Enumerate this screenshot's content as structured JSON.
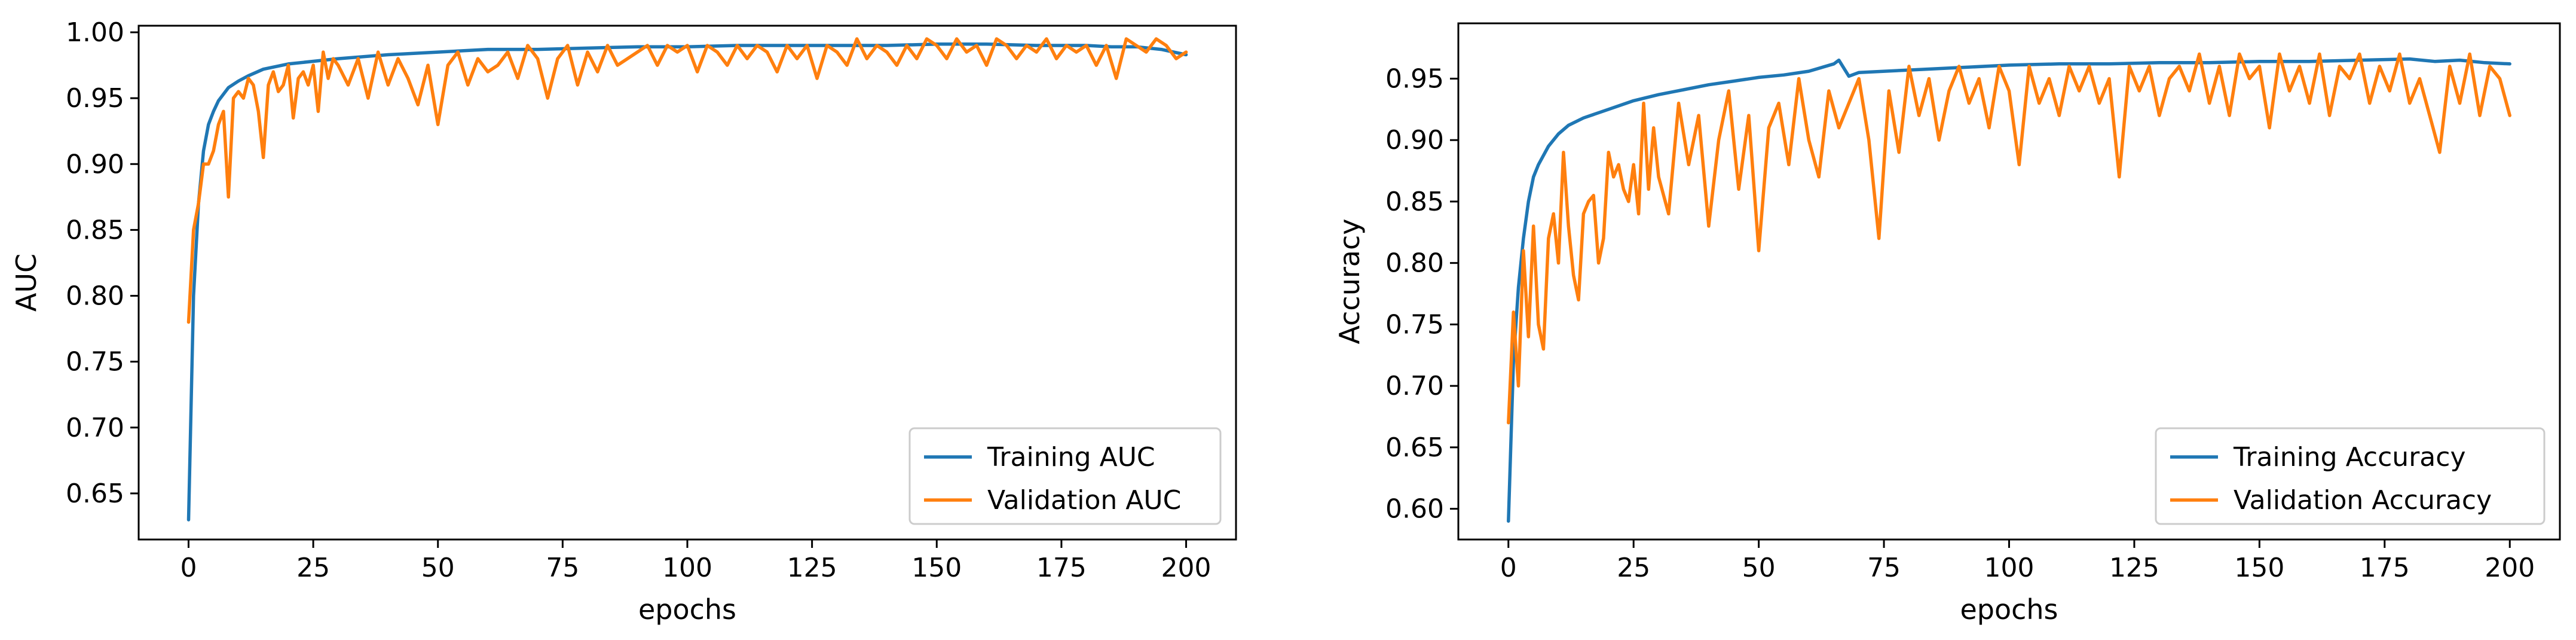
{
  "chart_data": [
    {
      "type": "line",
      "title": "",
      "xlabel": "epochs",
      "ylabel": "AUC",
      "xlim": [
        -10,
        210
      ],
      "ylim": [
        0.615,
        1.005
      ],
      "xticks": [
        0,
        25,
        50,
        75,
        100,
        125,
        150,
        175,
        200
      ],
      "xtick_labels": [
        "0",
        "25",
        "50",
        "75",
        "100",
        "125",
        "150",
        "175",
        "200"
      ],
      "yticks": [
        0.65,
        0.7,
        0.75,
        0.8,
        0.85,
        0.9,
        0.95,
        1.0
      ],
      "ytick_labels": [
        "0.65",
        "0.70",
        "0.75",
        "0.80",
        "0.85",
        "0.90",
        "0.95",
        "1.00"
      ],
      "grid": false,
      "legend_position": "lower-right",
      "series": [
        {
          "name": "Training AUC",
          "color": "#1f77b4",
          "x": [
            0,
            1,
            2,
            3,
            4,
            5,
            6,
            8,
            10,
            12,
            15,
            20,
            25,
            30,
            40,
            50,
            60,
            70,
            80,
            90,
            100,
            110,
            120,
            130,
            140,
            150,
            160,
            170,
            180,
            185,
            190,
            195,
            200
          ],
          "values": [
            0.63,
            0.8,
            0.87,
            0.91,
            0.93,
            0.94,
            0.948,
            0.958,
            0.963,
            0.967,
            0.972,
            0.976,
            0.978,
            0.98,
            0.983,
            0.985,
            0.987,
            0.987,
            0.988,
            0.989,
            0.989,
            0.99,
            0.99,
            0.99,
            0.99,
            0.991,
            0.991,
            0.99,
            0.99,
            0.989,
            0.989,
            0.987,
            0.983
          ]
        },
        {
          "name": "Validation AUC",
          "color": "#ff7f0e",
          "x": [
            0,
            1,
            2,
            3,
            4,
            5,
            6,
            7,
            8,
            9,
            10,
            11,
            12,
            13,
            14,
            15,
            16,
            17,
            18,
            19,
            20,
            21,
            22,
            23,
            24,
            25,
            26,
            27,
            28,
            29,
            30,
            32,
            34,
            36,
            38,
            40,
            42,
            44,
            46,
            48,
            50,
            52,
            54,
            56,
            58,
            60,
            62,
            64,
            66,
            68,
            70,
            72,
            74,
            76,
            78,
            80,
            82,
            84,
            86,
            88,
            90,
            92,
            94,
            96,
            98,
            100,
            102,
            104,
            106,
            108,
            110,
            112,
            114,
            116,
            118,
            120,
            122,
            124,
            126,
            128,
            130,
            132,
            134,
            136,
            138,
            140,
            142,
            144,
            146,
            148,
            150,
            152,
            154,
            156,
            158,
            160,
            162,
            164,
            166,
            168,
            170,
            172,
            174,
            176,
            178,
            180,
            182,
            184,
            186,
            188,
            190,
            192,
            194,
            196,
            198,
            200
          ],
          "values": [
            0.78,
            0.85,
            0.87,
            0.9,
            0.9,
            0.91,
            0.93,
            0.94,
            0.875,
            0.95,
            0.955,
            0.95,
            0.965,
            0.96,
            0.94,
            0.905,
            0.96,
            0.97,
            0.955,
            0.96,
            0.975,
            0.935,
            0.965,
            0.97,
            0.96,
            0.975,
            0.94,
            0.985,
            0.965,
            0.98,
            0.975,
            0.96,
            0.98,
            0.95,
            0.985,
            0.96,
            0.98,
            0.965,
            0.945,
            0.975,
            0.93,
            0.975,
            0.985,
            0.96,
            0.98,
            0.97,
            0.975,
            0.985,
            0.965,
            0.99,
            0.98,
            0.95,
            0.98,
            0.99,
            0.96,
            0.985,
            0.97,
            0.99,
            0.975,
            0.98,
            0.985,
            0.99,
            0.975,
            0.99,
            0.985,
            0.99,
            0.97,
            0.99,
            0.985,
            0.975,
            0.99,
            0.98,
            0.99,
            0.985,
            0.97,
            0.99,
            0.98,
            0.99,
            0.965,
            0.99,
            0.985,
            0.975,
            0.995,
            0.98,
            0.99,
            0.985,
            0.975,
            0.99,
            0.98,
            0.995,
            0.99,
            0.98,
            0.995,
            0.985,
            0.99,
            0.975,
            0.995,
            0.99,
            0.98,
            0.99,
            0.985,
            0.995,
            0.98,
            0.99,
            0.985,
            0.99,
            0.975,
            0.99,
            0.965,
            0.995,
            0.99,
            0.985,
            0.995,
            0.99,
            0.98,
            0.985
          ]
        }
      ]
    },
    {
      "type": "line",
      "title": "",
      "xlabel": "epochs",
      "ylabel": "Accuracy",
      "xlim": [
        -10,
        210
      ],
      "ylim": [
        0.575,
        0.995
      ],
      "xticks": [
        0,
        25,
        50,
        75,
        100,
        125,
        150,
        175,
        200
      ],
      "xtick_labels": [
        "0",
        "25",
        "50",
        "75",
        "100",
        "125",
        "150",
        "175",
        "200"
      ],
      "yticks": [
        0.6,
        0.65,
        0.7,
        0.75,
        0.8,
        0.85,
        0.9,
        0.95
      ],
      "ytick_labels": [
        "0.60",
        "0.65",
        "0.70",
        "0.75",
        "0.80",
        "0.85",
        "0.90",
        "0.95"
      ],
      "grid": false,
      "legend_position": "lower-right",
      "series": [
        {
          "name": "Training Accuracy",
          "color": "#1f77b4",
          "x": [
            0,
            1,
            2,
            3,
            4,
            5,
            6,
            8,
            10,
            12,
            15,
            20,
            25,
            30,
            35,
            40,
            45,
            50,
            55,
            60,
            65,
            66,
            68,
            70,
            80,
            90,
            100,
            110,
            120,
            130,
            140,
            150,
            160,
            170,
            180,
            185,
            190,
            195,
            200
          ],
          "values": [
            0.59,
            0.72,
            0.78,
            0.82,
            0.85,
            0.87,
            0.88,
            0.895,
            0.905,
            0.912,
            0.918,
            0.925,
            0.932,
            0.937,
            0.941,
            0.945,
            0.948,
            0.951,
            0.953,
            0.956,
            0.962,
            0.965,
            0.952,
            0.955,
            0.957,
            0.959,
            0.961,
            0.962,
            0.962,
            0.963,
            0.963,
            0.964,
            0.964,
            0.965,
            0.966,
            0.964,
            0.965,
            0.963,
            0.962
          ]
        },
        {
          "name": "Validation Accuracy",
          "color": "#ff7f0e",
          "x": [
            0,
            1,
            2,
            3,
            4,
            5,
            6,
            7,
            8,
            9,
            10,
            11,
            12,
            13,
            14,
            15,
            16,
            17,
            18,
            19,
            20,
            21,
            22,
            23,
            24,
            25,
            26,
            27,
            28,
            29,
            30,
            32,
            34,
            36,
            38,
            40,
            42,
            44,
            46,
            48,
            50,
            52,
            54,
            56,
            58,
            60,
            62,
            64,
            66,
            68,
            70,
            72,
            74,
            76,
            78,
            80,
            82,
            84,
            86,
            88,
            90,
            92,
            94,
            96,
            98,
            100,
            102,
            104,
            106,
            108,
            110,
            112,
            114,
            116,
            118,
            120,
            122,
            124,
            126,
            128,
            130,
            132,
            134,
            136,
            138,
            140,
            142,
            144,
            146,
            148,
            150,
            152,
            154,
            156,
            158,
            160,
            162,
            164,
            166,
            168,
            170,
            172,
            174,
            176,
            178,
            180,
            182,
            184,
            186,
            188,
            190,
            192,
            194,
            196,
            198,
            200
          ],
          "values": [
            0.67,
            0.76,
            0.7,
            0.81,
            0.74,
            0.83,
            0.75,
            0.73,
            0.82,
            0.84,
            0.8,
            0.89,
            0.83,
            0.79,
            0.77,
            0.84,
            0.85,
            0.855,
            0.8,
            0.82,
            0.89,
            0.87,
            0.88,
            0.86,
            0.85,
            0.88,
            0.84,
            0.93,
            0.86,
            0.91,
            0.87,
            0.84,
            0.93,
            0.88,
            0.92,
            0.83,
            0.9,
            0.94,
            0.86,
            0.92,
            0.81,
            0.91,
            0.93,
            0.88,
            0.95,
            0.9,
            0.87,
            0.94,
            0.91,
            0.93,
            0.95,
            0.9,
            0.82,
            0.94,
            0.89,
            0.96,
            0.92,
            0.95,
            0.9,
            0.94,
            0.96,
            0.93,
            0.95,
            0.91,
            0.96,
            0.94,
            0.88,
            0.96,
            0.93,
            0.95,
            0.92,
            0.96,
            0.94,
            0.96,
            0.93,
            0.95,
            0.87,
            0.96,
            0.94,
            0.96,
            0.92,
            0.95,
            0.96,
            0.94,
            0.97,
            0.93,
            0.96,
            0.92,
            0.97,
            0.95,
            0.96,
            0.91,
            0.97,
            0.94,
            0.96,
            0.93,
            0.97,
            0.92,
            0.96,
            0.95,
            0.97,
            0.93,
            0.96,
            0.94,
            0.97,
            0.93,
            0.95,
            0.92,
            0.89,
            0.96,
            0.93,
            0.97,
            0.92,
            0.96,
            0.95,
            0.92
          ]
        }
      ]
    }
  ]
}
